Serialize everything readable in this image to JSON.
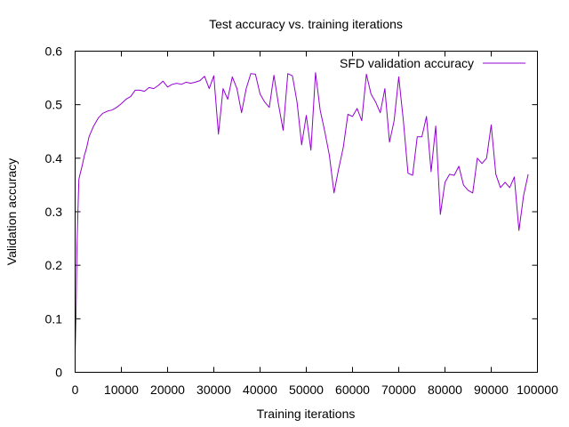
{
  "chart_data": {
    "type": "line",
    "title": "Test accuracy vs. training iterations",
    "xlabel": "Training iterations",
    "ylabel": "Validation accuracy",
    "xlim": [
      0,
      100000
    ],
    "ylim": [
      0,
      0.6
    ],
    "xticks": [
      0,
      10000,
      20000,
      30000,
      40000,
      50000,
      60000,
      70000,
      80000,
      90000,
      100000
    ],
    "xtick_labels": [
      "0",
      "10000",
      "20000",
      "30000",
      "40000",
      "50000",
      "60000",
      "70000",
      "80000",
      "90000",
      "100000"
    ],
    "yticks": [
      0,
      0.1,
      0.2,
      0.3,
      0.4,
      0.5,
      0.6
    ],
    "ytick_labels": [
      "0",
      "0.1",
      "0.2",
      "0.3",
      "0.4",
      "0.5",
      "0.6"
    ],
    "grid": false,
    "legend_position": "top-right",
    "series": [
      {
        "name": "SFD validation accuracy",
        "color": "#9400d3",
        "x": [
          0,
          200,
          400,
          800,
          1000,
          1500,
          2000,
          2500,
          3000,
          4000,
          5000,
          6000,
          7000,
          8000,
          9000,
          10000,
          11000,
          12000,
          13000,
          14000,
          15000,
          16000,
          17000,
          18000,
          19000,
          20000,
          21000,
          22000,
          23000,
          24000,
          25000,
          26000,
          27000,
          28000,
          29000,
          30000,
          31000,
          32000,
          33000,
          34000,
          35000,
          36000,
          37000,
          38000,
          39000,
          40000,
          41000,
          42000,
          43000,
          44000,
          45000,
          46000,
          47000,
          48000,
          49000,
          50000,
          51000,
          52000,
          53000,
          54000,
          55000,
          56000,
          57000,
          58000,
          59000,
          60000,
          61000,
          62000,
          63000,
          64000,
          65000,
          66000,
          67000,
          68000,
          69000,
          70000,
          71000,
          72000,
          73000,
          74000,
          75000,
          76000,
          77000,
          78000,
          79000,
          80000,
          81000,
          82000,
          83000,
          84000,
          85000,
          86000,
          87000,
          88000,
          89000,
          90000,
          91000,
          92000,
          93000,
          94000,
          95000,
          96000,
          97000,
          98000
        ],
        "y": [
          0.035,
          0.105,
          0.24,
          0.36,
          0.368,
          0.385,
          0.405,
          0.42,
          0.44,
          0.46,
          0.475,
          0.484,
          0.488,
          0.49,
          0.495,
          0.502,
          0.51,
          0.515,
          0.527,
          0.527,
          0.525,
          0.532,
          0.53,
          0.536,
          0.544,
          0.533,
          0.538,
          0.54,
          0.538,
          0.542,
          0.54,
          0.542,
          0.545,
          0.553,
          0.53,
          0.554,
          0.445,
          0.53,
          0.51,
          0.552,
          0.53,
          0.485,
          0.53,
          0.558,
          0.557,
          0.52,
          0.505,
          0.495,
          0.555,
          0.5,
          0.452,
          0.558,
          0.554,
          0.505,
          0.425,
          0.48,
          0.415,
          0.56,
          0.49,
          0.45,
          0.405,
          0.335,
          0.38,
          0.42,
          0.482,
          0.478,
          0.493,
          0.47,
          0.557,
          0.52,
          0.505,
          0.485,
          0.53,
          0.43,
          0.47,
          0.552,
          0.47,
          0.372,
          0.368,
          0.44,
          0.44,
          0.478,
          0.375,
          0.46,
          0.295,
          0.355,
          0.37,
          0.368,
          0.385,
          0.35,
          0.34,
          0.335,
          0.4,
          0.39,
          0.4,
          0.462,
          0.37,
          0.345,
          0.355,
          0.345,
          0.365,
          0.265,
          0.33,
          0.37
        ]
      }
    ]
  }
}
